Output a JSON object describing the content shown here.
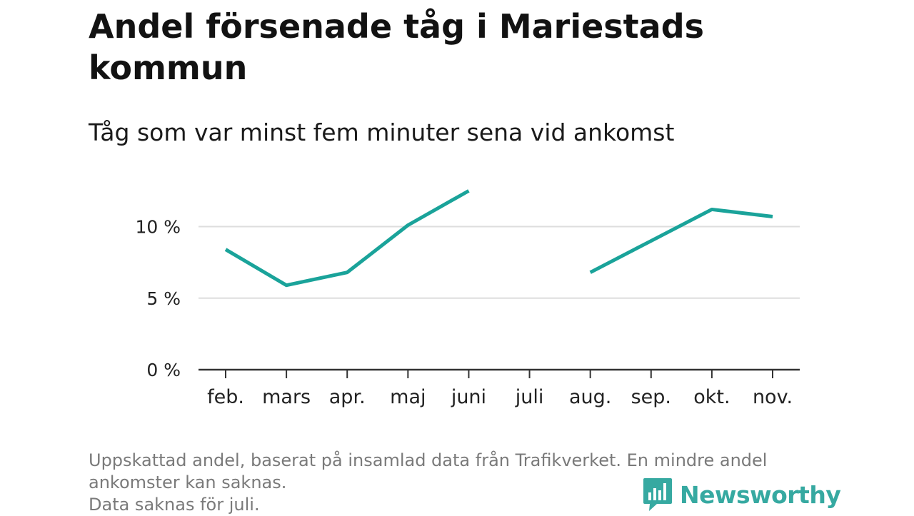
{
  "header": {
    "title": "Andel försenade tåg i Mariestads kommun",
    "subtitle": "Tåg som var minst fem minuter sena vid ankomst"
  },
  "footnote": {
    "line1": "Uppskattad andel, baserat på insamlad data från Trafikverket. En mindre andel",
    "line2": "ankomster kan saknas.",
    "line3": "Data saknas för juli."
  },
  "brand": {
    "name": "Newsworthy",
    "logo_icon": "bar-chart-bubble-icon",
    "color": "#36a9a1"
  },
  "colors": {
    "line": "#1aa39a",
    "grid": "#dddddd",
    "axis": "#333333"
  },
  "chart_data": {
    "type": "line",
    "title": "Andel försenade tåg i Mariestads kommun",
    "subtitle": "Tåg som var minst fem minuter sena vid ankomst",
    "categories": [
      "feb.",
      "mars",
      "apr.",
      "maj",
      "juni",
      "juli",
      "aug.",
      "sep.",
      "okt.",
      "nov."
    ],
    "series": [
      {
        "values": [
          8.4,
          5.9,
          6.8,
          10.1,
          12.5,
          null,
          6.8,
          9.0,
          11.2,
          10.7
        ]
      }
    ],
    "y_ticks": [
      0,
      5,
      10
    ],
    "y_tick_labels": [
      "0 %",
      "5 %",
      "10 %"
    ],
    "ylim": [
      0,
      12.5
    ],
    "grid": true,
    "legend": "none"
  }
}
